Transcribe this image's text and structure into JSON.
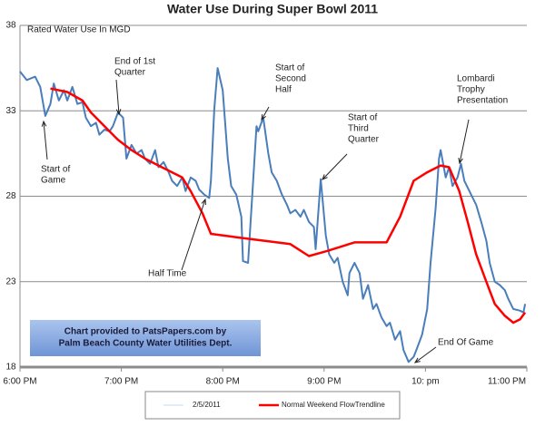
{
  "chart_data": {
    "type": "line",
    "title": "Water Use During Super Bowl 2011",
    "y_label": "Rated Water  Use In MGD",
    "xlim": [
      0,
      300
    ],
    "xticks": [
      {
        "value": 0,
        "label": "6:00 PM"
      },
      {
        "value": 60,
        "label": "7:00 PM"
      },
      {
        "value": 120,
        "label": "8:00 PM"
      },
      {
        "value": 180,
        "label": "9:00 PM"
      },
      {
        "value": 240,
        "label": "10: pm"
      },
      {
        "value": 300,
        "label": "11:00 PM"
      }
    ],
    "ylim": [
      18,
      38
    ],
    "yticks": [
      18,
      23,
      28,
      33,
      38
    ],
    "grid": true,
    "legend": "bottom",
    "series": [
      {
        "name": "2/5/2011",
        "color": "#4a7ebb",
        "x": [
          0,
          4,
          9,
          12,
          15,
          18,
          20,
          23,
          26,
          28,
          31,
          34,
          37,
          39,
          42,
          45,
          47,
          50,
          53,
          55,
          58,
          61,
          63,
          66,
          69,
          72,
          74,
          77,
          80,
          82,
          85,
          88,
          90,
          93,
          96,
          98,
          101,
          104,
          106,
          109,
          112,
          113,
          115,
          117,
          120,
          123,
          125,
          128,
          131,
          132,
          135,
          138,
          140,
          141,
          144,
          147,
          149,
          152,
          155,
          158,
          160,
          163,
          166,
          168,
          171,
          174,
          175,
          178,
          181,
          183,
          186,
          188,
          191,
          194,
          195,
          198,
          201,
          203,
          206,
          209,
          211,
          214,
          217,
          219,
          222,
          225,
          227,
          230,
          233,
          235,
          238,
          241,
          243,
          246,
          248,
          249,
          252,
          254,
          256,
          259,
          261,
          263,
          267,
          270,
          273,
          276,
          278,
          281,
          284,
          287,
          289,
          292,
          296,
          298,
          299
        ],
        "values": [
          35.3,
          34.8,
          35,
          34.4,
          32.7,
          33.4,
          34.6,
          33.6,
          34.2,
          33.6,
          34.4,
          33.4,
          33.5,
          32.6,
          32.1,
          32.3,
          31.6,
          31.9,
          31.8,
          32.1,
          32.9,
          32.6,
          30.2,
          31,
          30.5,
          30.7,
          30.2,
          29.9,
          30.7,
          29.7,
          30,
          29.4,
          28.9,
          28.6,
          29.1,
          28.3,
          29.1,
          28.9,
          28.4,
          28.1,
          27.9,
          28.9,
          33.1,
          35.5,
          34.2,
          30.2,
          28.6,
          28.1,
          26.8,
          24.2,
          24.1,
          28.9,
          32.1,
          31.8,
          32.6,
          30.5,
          29.4,
          28.9,
          28.1,
          27.5,
          27,
          27.2,
          26.8,
          27.2,
          26.5,
          26.2,
          24.9,
          29,
          25.7,
          24.6,
          24.1,
          24.4,
          23,
          22.2,
          23.5,
          24.1,
          23.5,
          22,
          22.8,
          21.4,
          21.7,
          20.9,
          20.4,
          20.6,
          19.6,
          20.1,
          19,
          18.3,
          18.6,
          19.1,
          19.9,
          21.4,
          24.1,
          27.3,
          30.2,
          30.7,
          29.1,
          29.7,
          28.6,
          29.1,
          29.9,
          28.9,
          28.1,
          27.5,
          26.5,
          25.4,
          24.1,
          23,
          22.8,
          22.5,
          22,
          21.4,
          21.3,
          21.2,
          21.7
        ]
      },
      {
        "name": "Normal Weekend FlowTrendline",
        "color": "#ff0000",
        "x": [
          18,
          28,
          37,
          42,
          50,
          58,
          66,
          74,
          82,
          90,
          96,
          101,
          108,
          113,
          128,
          144,
          160,
          171,
          182,
          198,
          217,
          225,
          233,
          241,
          249,
          254,
          260,
          265,
          270,
          276,
          281,
          287,
          292,
          296,
          299
        ],
        "values": [
          34.3,
          34.1,
          33.6,
          32.9,
          32.1,
          31.3,
          30.7,
          30.2,
          29.8,
          29.4,
          29.1,
          28.3,
          27,
          25.8,
          25.6,
          25.4,
          25.2,
          24.5,
          24.8,
          25.3,
          25.3,
          26.8,
          28.9,
          29.4,
          29.8,
          29.7,
          28.3,
          26.5,
          24.6,
          23,
          21.7,
          21,
          20.6,
          20.8,
          21.2
        ]
      }
    ],
    "annotations": [
      {
        "text": [
          "Start of",
          "Game"
        ]
      },
      {
        "text": [
          "End of 1st",
          "Quarter"
        ]
      },
      {
        "text": [
          "Start of",
          "Second",
          "Half"
        ]
      },
      {
        "text": [
          "Start of",
          "Third",
          "Quarter"
        ]
      },
      {
        "text": [
          "Lombardi",
          "Trophy",
          "Presentation"
        ]
      },
      {
        "text": [
          "Half Time"
        ]
      },
      {
        "text": [
          "End Of Game"
        ]
      }
    ],
    "note": [
      "Chart provided to PatsPapers.com by",
      "Palm Beach County Water Utilities Dept."
    ]
  }
}
